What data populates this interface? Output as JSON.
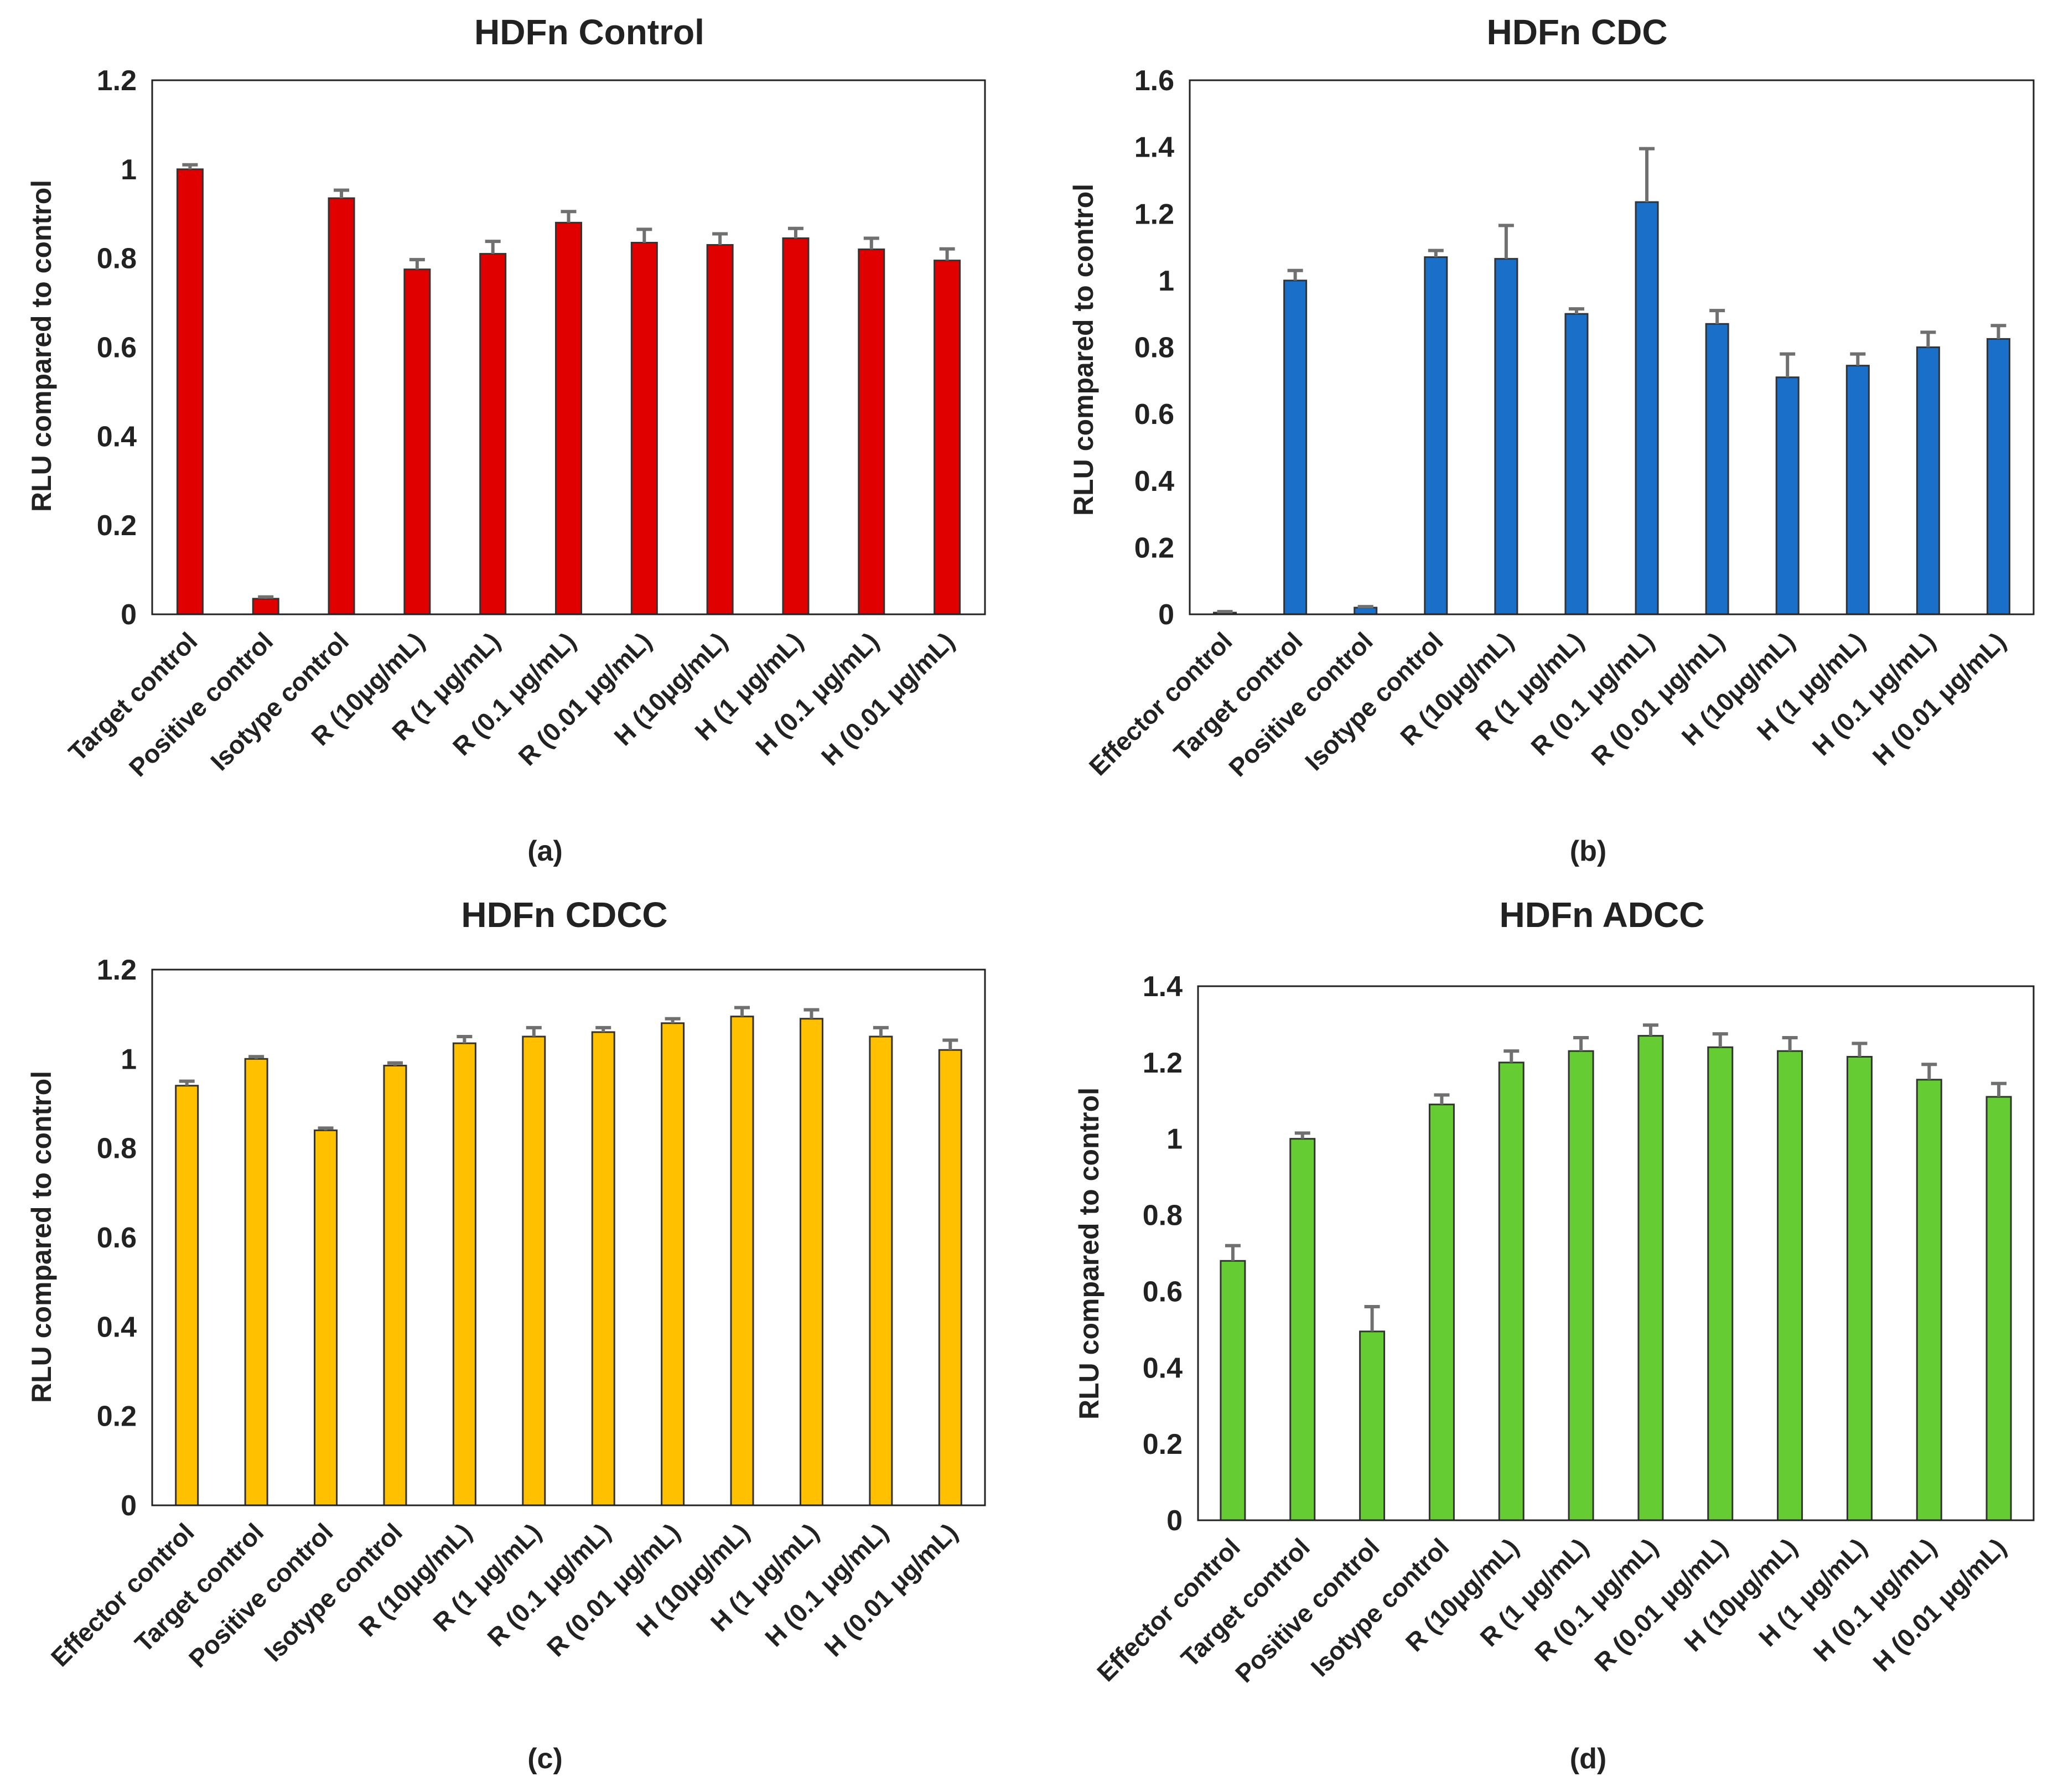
{
  "chart_data": [
    {
      "type": "bar",
      "title": "HDFn Control",
      "caption": "(a)",
      "xlabel": "",
      "ylabel": "RLU compared to control",
      "ylim": [
        0,
        1.2
      ],
      "yticks": [
        "0",
        "0.2",
        "0.4",
        "0.6",
        "0.8",
        "1",
        "1.2"
      ],
      "categories": [
        "Target control",
        "Positive control",
        "Isotype control",
        "R (10μg/mL)",
        "R (1 μg/mL)",
        "R (0.1 μg/mL)",
        "R (0.01 μg/mL)",
        "H (10μg/mL)",
        "H (1 μg/mL)",
        "H (0.1 μg/mL)",
        "H (0.01 μg/mL)"
      ],
      "values": [
        1.0,
        0.035,
        0.935,
        0.775,
        0.81,
        0.88,
        0.835,
        0.83,
        0.845,
        0.82,
        0.795
      ],
      "errors": [
        0.01,
        0.004,
        0.018,
        0.022,
        0.028,
        0.025,
        0.03,
        0.025,
        0.022,
        0.025,
        0.026
      ],
      "color": "#e00000",
      "grid": false
    },
    {
      "type": "bar",
      "title": "HDFn CDC",
      "caption": "(b)",
      "xlabel": "",
      "ylabel": "RLU compared to control",
      "ylim": [
        0,
        1.6
      ],
      "yticks": [
        "0",
        "0.2",
        "0.4",
        "0.6",
        "0.8",
        "1",
        "1.2",
        "1.4",
        "1.6"
      ],
      "categories": [
        "Effector control",
        "Target control",
        "Positive control",
        "Isotype control",
        "R (10μg/mL)",
        "R (1 μg/mL)",
        "R (0.1 μg/mL)",
        "R (0.01 μg/mL)",
        "H (10μg/mL)",
        "H (1 μg/mL)",
        "H (0.1 μg/mL)",
        "H (0.01 μg/mL)"
      ],
      "values": [
        0.005,
        1.0,
        0.02,
        1.07,
        1.065,
        0.9,
        1.235,
        0.87,
        0.71,
        0.745,
        0.8,
        0.825
      ],
      "errors": [
        0.003,
        0.03,
        0.003,
        0.02,
        0.1,
        0.015,
        0.16,
        0.04,
        0.07,
        0.035,
        0.045,
        0.04
      ],
      "color": "#1a70c8",
      "grid": false
    },
    {
      "type": "bar",
      "title": "HDFn CDCC",
      "caption": "(c)",
      "xlabel": "",
      "ylabel": "RLU compared to control",
      "ylim": [
        0,
        1.2
      ],
      "yticks": [
        "0",
        "0.2",
        "0.4",
        "0.6",
        "0.8",
        "1",
        "1.2"
      ],
      "categories": [
        "Effector control",
        "Target control",
        "Positive control",
        "Isotype control",
        "R (10μg/mL)",
        "R (1 μg/mL)",
        "R (0.1 μg/mL)",
        "R (0.01 μg/mL)",
        "H (10μg/mL)",
        "H (1 μg/mL)",
        "H (0.1 μg/mL)",
        "H (0.01 μg/mL)"
      ],
      "values": [
        0.94,
        1.0,
        0.84,
        0.985,
        1.035,
        1.05,
        1.06,
        1.08,
        1.095,
        1.09,
        1.05,
        1.02
      ],
      "errors": [
        0.01,
        0.005,
        0.005,
        0.006,
        0.015,
        0.02,
        0.01,
        0.01,
        0.02,
        0.02,
        0.02,
        0.022
      ],
      "color": "#ffc000",
      "grid": false
    },
    {
      "type": "bar",
      "title": "HDFn ADCC",
      "caption": "(d)",
      "xlabel": "",
      "ylabel": "RLU compared to control",
      "ylim": [
        0,
        1.4
      ],
      "yticks": [
        "0",
        "0.2",
        "0.4",
        "0.6",
        "0.8",
        "1",
        "1.2",
        "1.4"
      ],
      "categories": [
        "Effector control",
        "Target control",
        "Positive control",
        "Isotype control",
        "R (10μg/mL)",
        "R (1 μg/mL)",
        "R (0.1 μg/mL)",
        "R (0.01 μg/mL)",
        "H (10μg/mL)",
        "H (1 μg/mL)",
        "H (0.1 μg/mL)",
        "H (0.01 μg/mL)"
      ],
      "values": [
        0.68,
        1.0,
        0.495,
        1.09,
        1.2,
        1.23,
        1.27,
        1.24,
        1.23,
        1.215,
        1.155,
        1.11
      ],
      "errors": [
        0.04,
        0.015,
        0.065,
        0.025,
        0.03,
        0.035,
        0.028,
        0.035,
        0.035,
        0.035,
        0.04,
        0.035
      ],
      "color": "#66cc33",
      "grid": false
    }
  ]
}
